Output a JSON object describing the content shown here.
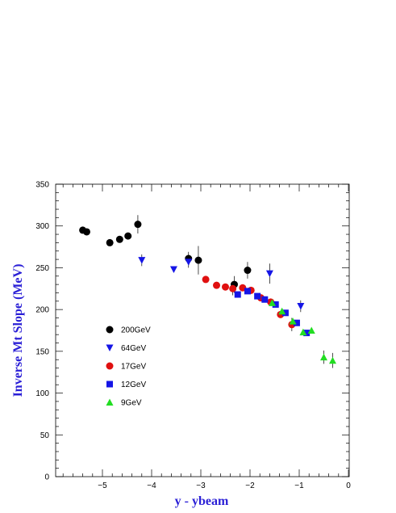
{
  "chart_data": {
    "type": "scatter",
    "title": "",
    "xlabel": "y - ybeam",
    "ylabel": "Inverse Mt Slope (MeV)",
    "xlim": [
      -5.9,
      0.1
    ],
    "ylim": [
      0,
      350
    ],
    "x_ticks": [
      -5,
      -4,
      -3,
      -2,
      -1,
      0
    ],
    "y_ticks": [
      0,
      50,
      100,
      150,
      200,
      250,
      300,
      350
    ],
    "x_tick_labels": [
      "−5",
      "−4",
      "−3",
      "−2",
      "−1",
      "0"
    ],
    "y_tick_labels": [
      "0",
      "50",
      "100",
      "150",
      "200",
      "250",
      "300",
      "350"
    ],
    "grid": false,
    "legend_position": "middle-left",
    "series": [
      {
        "name": "200GeV",
        "marker": "circle",
        "color": "#000000",
        "points": [
          {
            "x": -5.4,
            "y": 295,
            "err": 0
          },
          {
            "x": -5.32,
            "y": 293,
            "err": 0
          },
          {
            "x": -4.85,
            "y": 280,
            "err": 0
          },
          {
            "x": -4.65,
            "y": 284,
            "err": 0
          },
          {
            "x": -4.48,
            "y": 288,
            "err": 0
          },
          {
            "x": -4.28,
            "y": 302,
            "err": 11
          },
          {
            "x": -3.25,
            "y": 261,
            "err": 8
          },
          {
            "x": -3.05,
            "y": 259,
            "err": 17
          },
          {
            "x": -2.32,
            "y": 230,
            "err": 10
          },
          {
            "x": -2.05,
            "y": 247,
            "err": 10
          }
        ]
      },
      {
        "name": "64GeV",
        "marker": "triangle-down",
        "color": "#1515e6",
        "points": [
          {
            "x": -4.2,
            "y": 259,
            "err": 7
          },
          {
            "x": -3.55,
            "y": 248,
            "err": 0
          },
          {
            "x": -3.25,
            "y": 257,
            "err": 7
          },
          {
            "x": -1.6,
            "y": 243,
            "err": 12
          },
          {
            "x": -0.97,
            "y": 204,
            "err": 7
          }
        ]
      },
      {
        "name": "17GeV",
        "marker": "circle",
        "color": "#e01010",
        "points": [
          {
            "x": -2.9,
            "y": 236,
            "err": 0
          },
          {
            "x": -2.68,
            "y": 229,
            "err": 0
          },
          {
            "x": -2.5,
            "y": 227,
            "err": 0
          },
          {
            "x": -2.35,
            "y": 225,
            "err": 8
          },
          {
            "x": -2.15,
            "y": 226,
            "err": 0
          },
          {
            "x": -1.98,
            "y": 223,
            "err": 0
          },
          {
            "x": -1.78,
            "y": 214,
            "err": 0
          },
          {
            "x": -1.58,
            "y": 209,
            "err": 0
          },
          {
            "x": -1.38,
            "y": 194,
            "err": 0
          },
          {
            "x": -1.15,
            "y": 182,
            "err": 8
          }
        ]
      },
      {
        "name": "12GeV",
        "marker": "square",
        "color": "#1515e6",
        "points": [
          {
            "x": -2.25,
            "y": 218,
            "err": 0
          },
          {
            "x": -2.05,
            "y": 222,
            "err": 0
          },
          {
            "x": -1.85,
            "y": 216,
            "err": 0
          },
          {
            "x": -1.7,
            "y": 212,
            "err": 0
          },
          {
            "x": -1.48,
            "y": 206,
            "err": 0
          },
          {
            "x": -1.28,
            "y": 196,
            "err": 0
          },
          {
            "x": -1.05,
            "y": 184,
            "err": 0
          },
          {
            "x": -0.85,
            "y": 172,
            "err": 0
          }
        ]
      },
      {
        "name": "9GeV",
        "marker": "triangle-up",
        "color": "#22dd22",
        "points": [
          {
            "x": -1.55,
            "y": 208,
            "err": 0
          },
          {
            "x": -1.35,
            "y": 198,
            "err": 0
          },
          {
            "x": -1.13,
            "y": 186,
            "err": 0
          },
          {
            "x": -0.92,
            "y": 173,
            "err": 0
          },
          {
            "x": -0.75,
            "y": 175,
            "err": 0
          },
          {
            "x": -0.5,
            "y": 143,
            "err": 8
          },
          {
            "x": -0.32,
            "y": 139,
            "err": 9
          }
        ]
      }
    ]
  }
}
